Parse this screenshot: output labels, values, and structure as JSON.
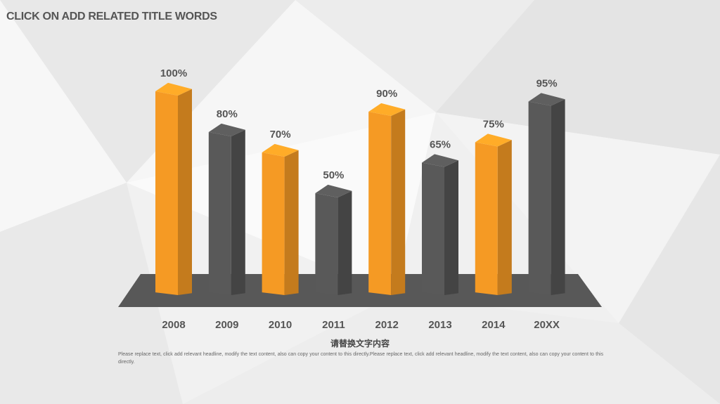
{
  "slide": {
    "title": "CLICK ON ADD RELATED  TITLE WORDS",
    "subtitle": "请替换文字内容",
    "body": "Please replace text, click add relevant headline, modify the text content, also can copy your content to this directly.Please replace text, click add relevant headline, modify the text content, also can copy your content to this directly."
  },
  "colors": {
    "orange": "#F59A24",
    "gray": "#555555",
    "platform": "#585858",
    "label": "#555555"
  },
  "chart_data": {
    "type": "bar",
    "categories": [
      "2008",
      "2009",
      "2010",
      "2011",
      "2012",
      "2013",
      "2014",
      "20XX"
    ],
    "values": [
      100,
      80,
      70,
      50,
      90,
      65,
      75,
      95
    ],
    "value_labels": [
      "100%",
      "80%",
      "70%",
      "50%",
      "90%",
      "65%",
      "75%",
      "95%"
    ],
    "bar_colors": [
      "orange",
      "gray",
      "orange",
      "gray",
      "orange",
      "gray",
      "orange",
      "gray"
    ],
    "ylim": [
      0,
      100
    ],
    "style": "3d",
    "grid": false
  }
}
